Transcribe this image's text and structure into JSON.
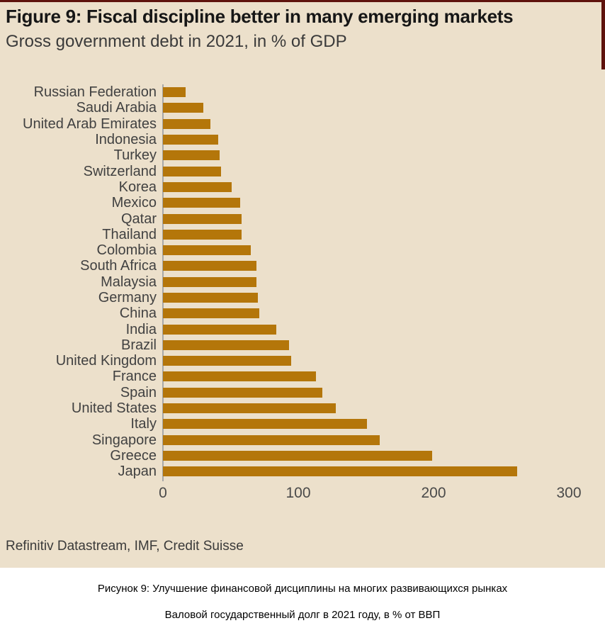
{
  "figure": {
    "title": "Figure 9: Fiscal discipline better in many emerging markets",
    "subtitle": "Gross government debt in 2021, in % of GDP",
    "source": "Refinitiv Datastream, IMF, Credit Suisse"
  },
  "caption": {
    "line1": "Рисунок 9: Улучшение финансовой дисциплины на многих развивающихся рынках",
    "line2": "Валовой государственный долг в 2021 году, в % от ВВП"
  },
  "colors": {
    "background": "#ece0cb",
    "bar": "#b4760a",
    "accent_rule": "#5e120c",
    "axis_line": "#a8a8a8",
    "title_text": "#161616",
    "body_text": "#3a3a3a"
  },
  "chart_data": {
    "type": "bar",
    "orientation": "horizontal",
    "title": "Gross government debt in 2021, in % of GDP",
    "xlabel": "",
    "ylabel": "",
    "xlim": [
      0,
      300
    ],
    "xticks": [
      0,
      100,
      200,
      300
    ],
    "grid": false,
    "legend": false,
    "categories": [
      "Russian Federation",
      "Saudi Arabia",
      "United Arab Emirates",
      "Indonesia",
      "Turkey",
      "Switzerland",
      "Korea",
      "Mexico",
      "Qatar",
      "Thailand",
      "Colombia",
      "South Africa",
      "Malaysia",
      "Germany",
      "China",
      "India",
      "Brazil",
      "United Kingdom",
      "France",
      "Spain",
      "United States",
      "Italy",
      "Singapore",
      "Greece",
      "Japan"
    ],
    "values": [
      17,
      30,
      35,
      41,
      42,
      43,
      51,
      57,
      58,
      58,
      65,
      69,
      69,
      70,
      71,
      84,
      93,
      95,
      113,
      118,
      128,
      151,
      160,
      199,
      262
    ]
  }
}
